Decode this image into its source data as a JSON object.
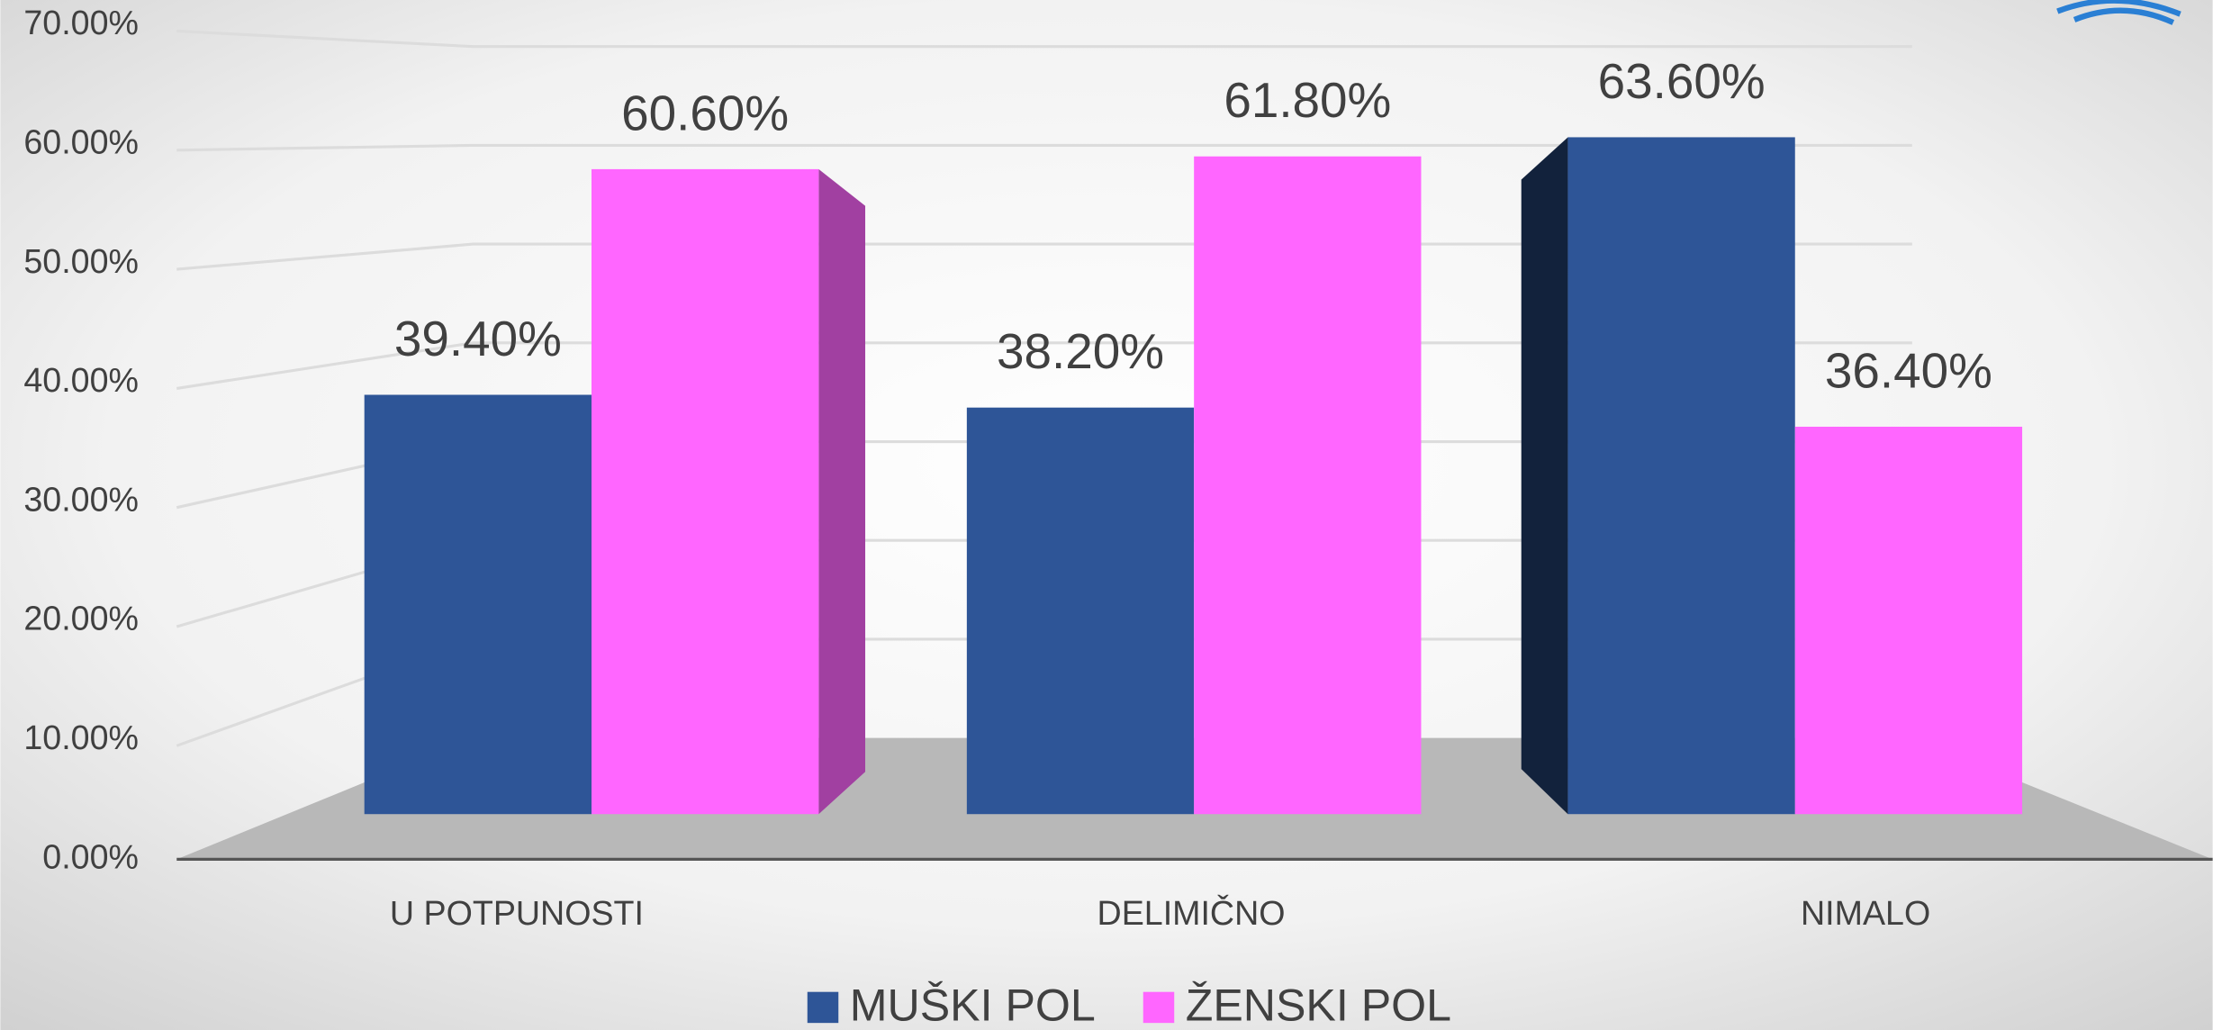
{
  "chart_data": {
    "type": "bar3d",
    "categories": [
      "U POTPUNOSTI",
      "DELIMIČNO",
      "NIMALO"
    ],
    "series": [
      {
        "name": "MUŠKI POL",
        "color": "#2e5597",
        "values": [
          39.4,
          38.2,
          63.6
        ],
        "value_labels": [
          "39.40%",
          "38.20%",
          "63.60%"
        ]
      },
      {
        "name": "ŽENSKI POL",
        "color": "#ff66ff",
        "values": [
          60.6,
          61.8,
          36.4
        ],
        "value_labels": [
          "60.60%",
          "61.80%",
          "36.40%"
        ]
      }
    ],
    "ylim": [
      0,
      70
    ],
    "yticks": [
      {
        "value": 0,
        "label": "0.00%"
      },
      {
        "value": 10,
        "label": "10.00%"
      },
      {
        "value": 20,
        "label": "20.00%"
      },
      {
        "value": 30,
        "label": "30.00%"
      },
      {
        "value": 40,
        "label": "40.00%"
      },
      {
        "value": 50,
        "label": "50.00%"
      },
      {
        "value": 60,
        "label": "60.00%"
      },
      {
        "value": 70,
        "label": "70.00%"
      }
    ],
    "grid": true,
    "legend": "bottom"
  }
}
